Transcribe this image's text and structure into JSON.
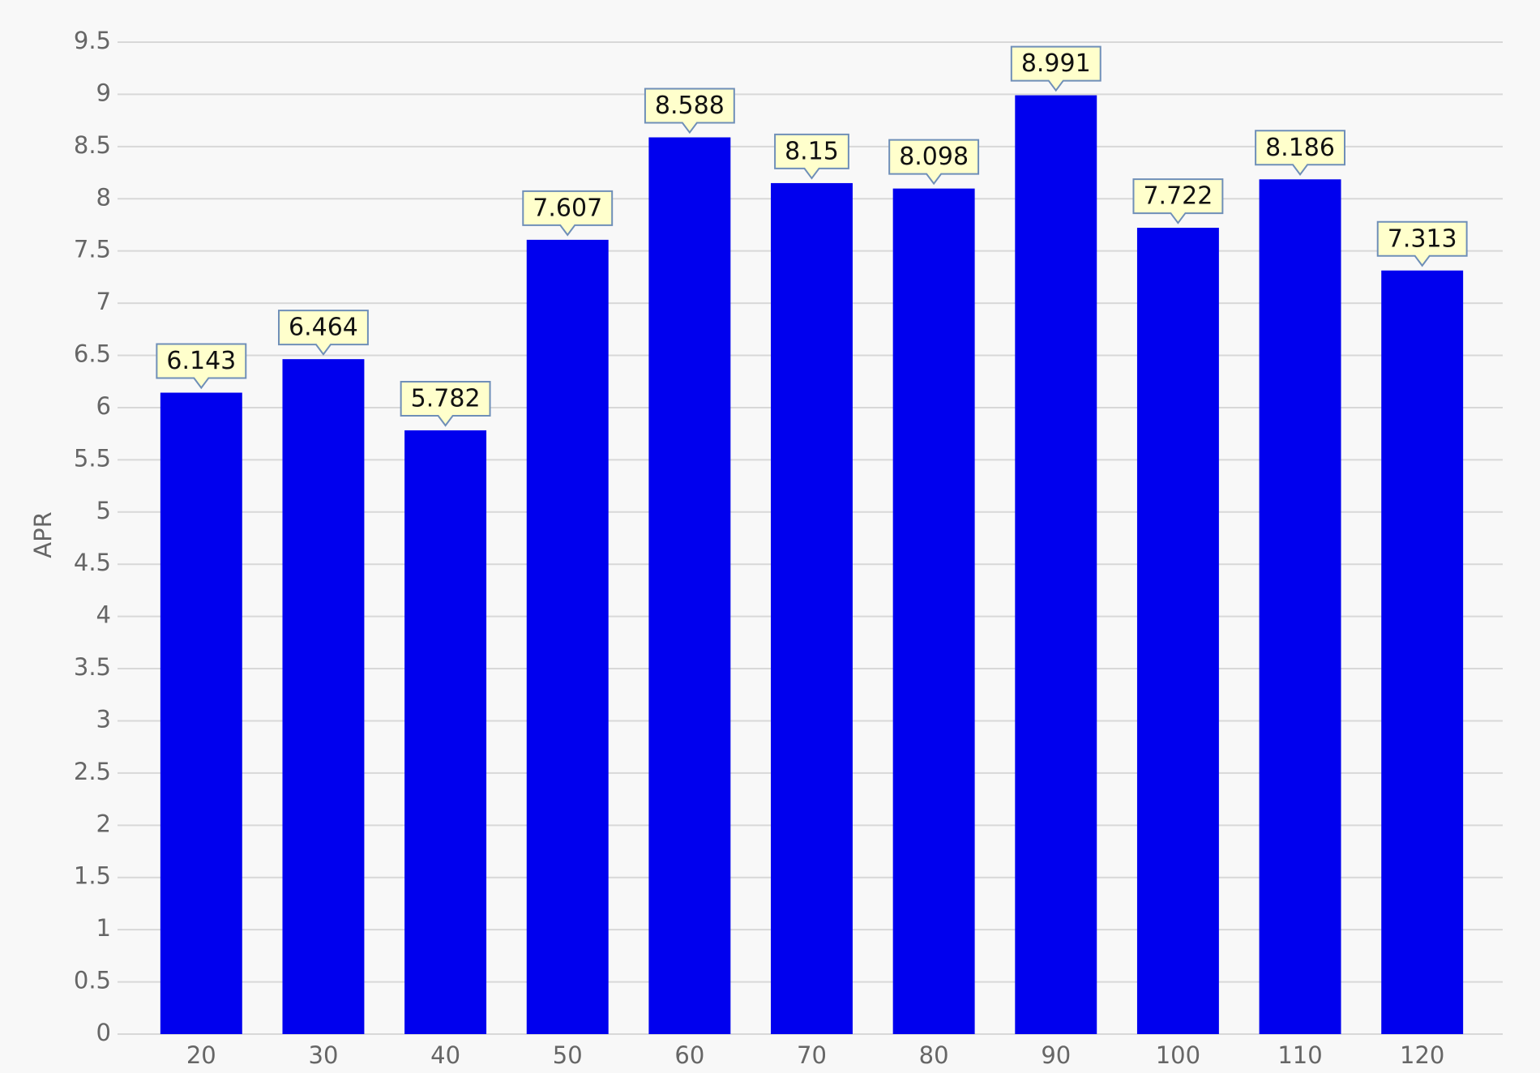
{
  "chart_data": {
    "type": "bar",
    "y_label": "APR",
    "categories": [
      "20",
      "30",
      "40",
      "50",
      "60",
      "70",
      "80",
      "90",
      "100",
      "110",
      "120"
    ],
    "values": [
      6.143,
      6.464,
      5.782,
      7.607,
      8.588,
      8.15,
      8.098,
      8.991,
      7.722,
      8.186,
      7.313
    ],
    "color": "#0000ee",
    "ylim": [
      0,
      9.5
    ],
    "yticks": [
      0,
      0.5,
      1,
      1.5,
      2,
      2.5,
      3,
      3.5,
      4,
      4.5,
      5,
      5.5,
      6,
      6.5,
      7,
      7.5,
      8,
      8.5,
      9,
      9.5
    ],
    "grid": true,
    "data_labels": true
  }
}
